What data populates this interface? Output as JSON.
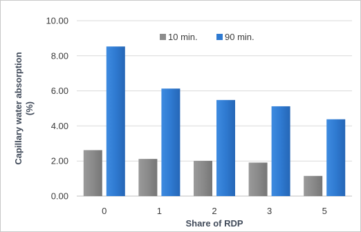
{
  "chart_data": {
    "type": "bar",
    "title": "",
    "xlabel": "Share of RDP",
    "ylabel": "Capillary water absorption (%)",
    "categories": [
      "0",
      "1",
      "2",
      "3",
      "5"
    ],
    "series": [
      {
        "name": "10 min.",
        "values": [
          2.62,
          2.12,
          2.01,
          1.91,
          1.15
        ]
      },
      {
        "name": "90 min.",
        "values": [
          8.53,
          6.13,
          5.48,
          5.12,
          4.38
        ]
      }
    ],
    "ylim": [
      0,
      10
    ],
    "yticks": [
      "0.00",
      "2.00",
      "4.00",
      "6.00",
      "8.00",
      "10.00"
    ],
    "ylabel_lines": [
      "Capillary water absorption",
      "(%)"
    ],
    "legend_position": "top-center",
    "grid": true,
    "colors": {
      "10 min.": "#8c8c8c",
      "90 min.": "#2f7ad1",
      "grid": "#d9d9d9",
      "axis_text": "#3a3a3a",
      "label_text": "#404a59"
    }
  }
}
